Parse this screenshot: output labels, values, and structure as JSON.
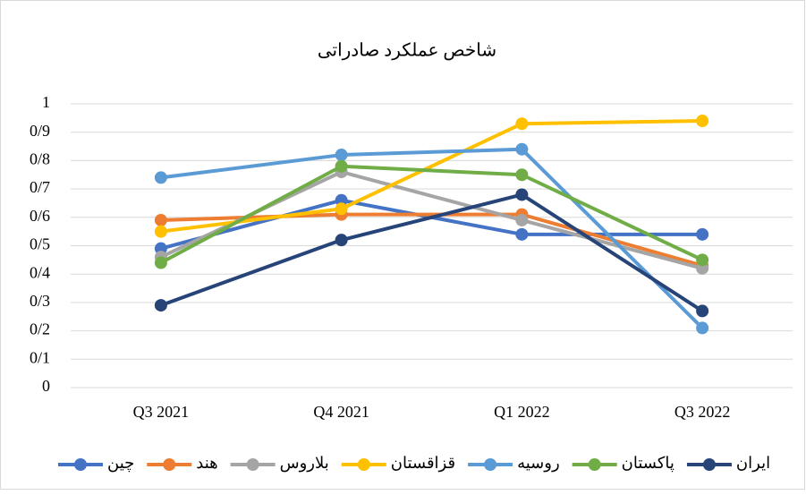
{
  "chart_data": {
    "type": "line",
    "title": "شاخص عملکرد صادراتی",
    "categories": [
      "Q3 2021",
      "Q4 2021",
      "Q1 2022",
      "Q3 2022"
    ],
    "series": [
      {
        "name": "چین",
        "color": "#4472c4",
        "values": [
          0.49,
          0.66,
          0.54,
          0.54
        ]
      },
      {
        "name": "هند",
        "color": "#ed7d31",
        "values": [
          0.59,
          0.61,
          0.61,
          0.43
        ]
      },
      {
        "name": "بلاروس",
        "color": "#a5a5a5",
        "values": [
          0.46,
          0.76,
          0.59,
          0.42
        ]
      },
      {
        "name": "قزاقستان",
        "color": "#ffc000",
        "values": [
          0.55,
          0.63,
          0.93,
          0.94
        ]
      },
      {
        "name": "روسیه",
        "color": "#5b9bd5",
        "values": [
          0.74,
          0.82,
          0.84,
          0.21
        ]
      },
      {
        "name": "پاکستان",
        "color": "#70ad47",
        "values": [
          0.44,
          0.78,
          0.75,
          0.45
        ]
      },
      {
        "name": "ایران",
        "color": "#264478",
        "values": [
          0.29,
          0.52,
          0.68,
          0.27
        ]
      }
    ],
    "ylim": [
      0,
      1
    ],
    "yticks": [
      0,
      {
        "value": 0.1,
        "label": "0/1"
      },
      {
        "value": 0.2,
        "label": "0/2"
      },
      {
        "value": 0.3,
        "label": "0/3"
      },
      {
        "value": 0.4,
        "label": "0/4"
      },
      {
        "value": 0.5,
        "label": "0/5"
      },
      {
        "value": 0.6,
        "label": "0/6"
      },
      {
        "value": 0.7,
        "label": "0/7"
      },
      {
        "value": 0.8,
        "label": "0/8"
      },
      {
        "value": 0.9,
        "label": "0/9"
      },
      1
    ],
    "grid": true,
    "legend": "bottom"
  }
}
